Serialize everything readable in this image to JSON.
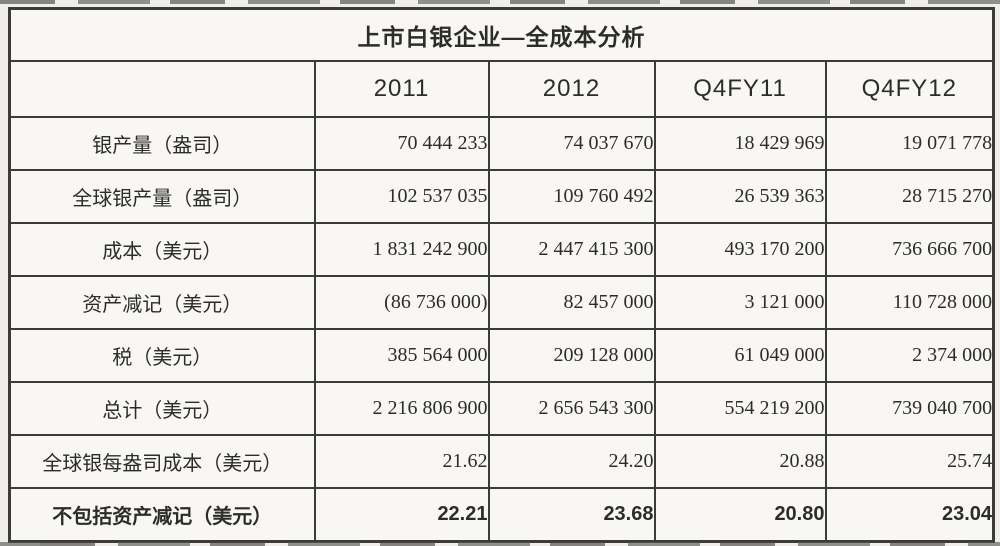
{
  "colors": {
    "paper": "#efeeea",
    "cell": "#f8f7f3",
    "border": "#3b3b3b",
    "ink": "#2c2c2c"
  },
  "chart_data": {
    "type": "table",
    "title": "上市白银企业—全成本分析",
    "columns": [
      "",
      "2011",
      "2012",
      "Q4FY11",
      "Q4FY12"
    ],
    "rows": [
      {
        "label": "银产量（盎司）",
        "values": [
          "70 444 233",
          "74 037 670",
          "18 429 969",
          "19 071 778"
        ],
        "bold": false
      },
      {
        "label": "全球银产量（盎司）",
        "values": [
          "102 537 035",
          "109 760 492",
          "26 539 363",
          "28 715 270"
        ],
        "bold": false
      },
      {
        "label": "成本（美元）",
        "values": [
          "1 831 242 900",
          "2 447 415 300",
          "493 170 200",
          "736 666 700"
        ],
        "bold": false
      },
      {
        "label": "资产减记（美元）",
        "values": [
          "(86 736 000)",
          "82 457 000",
          "3 121 000",
          "110 728 000"
        ],
        "bold": false
      },
      {
        "label": "税（美元）",
        "values": [
          "385 564 000",
          "209 128 000",
          "61 049 000",
          "2 374 000"
        ],
        "bold": false
      },
      {
        "label": "总计（美元）",
        "values": [
          "2 216 806 900",
          "2 656 543 300",
          "554 219 200",
          "739 040 700"
        ],
        "bold": false
      },
      {
        "label": "全球银每盎司成本（美元）",
        "values": [
          "21.62",
          "24.20",
          "20.88",
          "25.74"
        ],
        "bold": false
      },
      {
        "label": "不包括资产减记（美元）",
        "values": [
          "22.21",
          "23.68",
          "20.80",
          "23.04"
        ],
        "bold": true
      }
    ]
  }
}
